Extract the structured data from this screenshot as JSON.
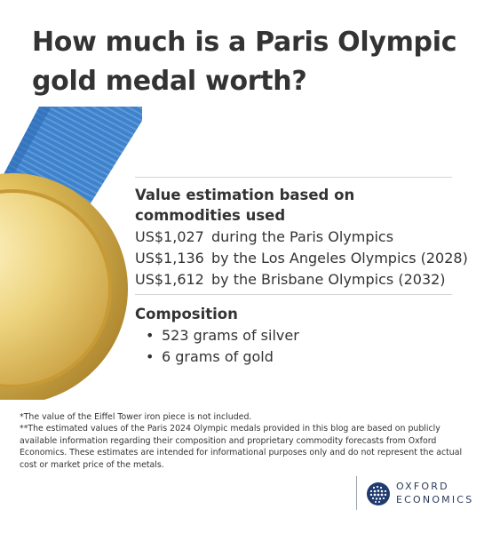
{
  "title": "How much is a Paris Olympic gold medal worth?",
  "value_section": {
    "heading": "Value estimation based on commodities used",
    "rows": [
      {
        "amount": "US$1,027",
        "label": "during the Paris Olympics"
      },
      {
        "amount": "US$1,136",
        "label": "by the Los Angeles Olympics (2028)"
      },
      {
        "amount": "US$1,612",
        "label": "by the Brisbane Olympics (2032)"
      }
    ]
  },
  "composition": {
    "heading": "Composition",
    "items": [
      "523 grams of silver",
      "6 grams of gold"
    ]
  },
  "footnotes": [
    "*The value of the Eiffel Tower iron piece is not included.",
    "**The estimated values of the Paris 2024 Olympic medals provided in this blog are based on publicly available information regarding their composition and proprietary commodity forecasts from Oxford Economics. These estimates are intended for informational purposes only and do not represent the actual cost or market price of the metals."
  ],
  "logo": {
    "line1": "OXFORD",
    "line2": "ECONOMICS"
  },
  "colors": {
    "ribbon": "#3d7fc9",
    "gold": "#d6b24a",
    "text": "#333333"
  },
  "icons": {
    "medal": "gold-medal-illustration",
    "logo_mark": "globe-icon"
  }
}
